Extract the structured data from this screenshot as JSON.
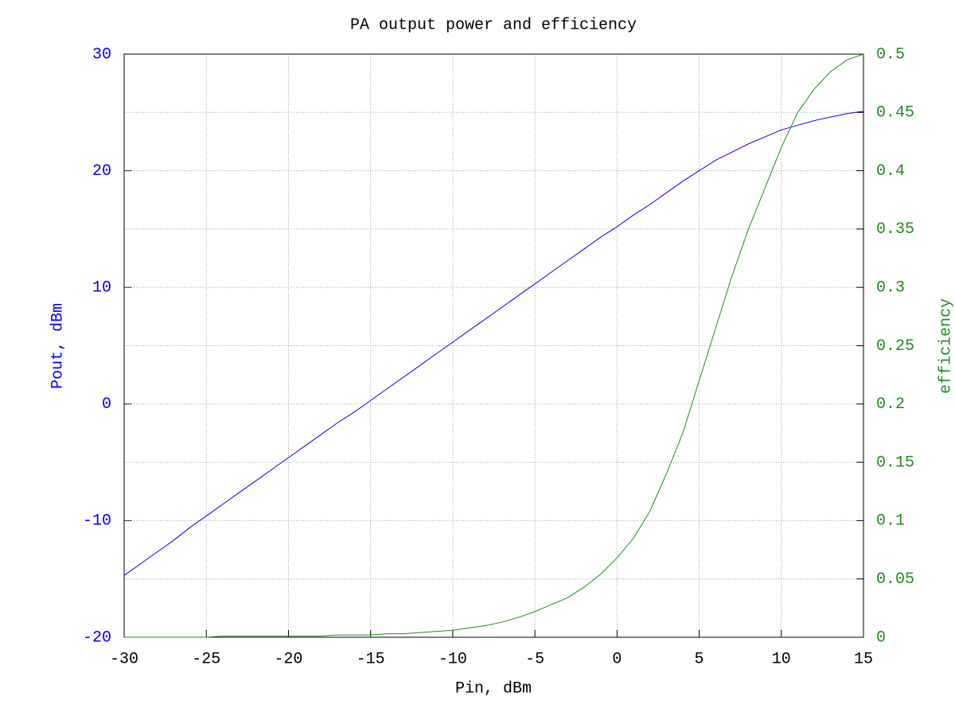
{
  "chart_data": {
    "type": "line",
    "title": "PA output power and efficiency",
    "x_label": "Pin, dBm",
    "y_label": "Pout, dBm",
    "y2_label": "efficiency",
    "x": [
      -30,
      -29,
      -28,
      -27,
      -26,
      -25,
      -24,
      -23,
      -22,
      -21,
      -20,
      -19,
      -18,
      -17,
      -16,
      -15,
      -14,
      -13,
      -12,
      -11,
      -10,
      -9,
      -8,
      -7,
      -6,
      -5,
      -4,
      -3,
      -2,
      -1,
      0,
      1,
      2,
      3,
      4,
      5,
      6,
      7,
      8,
      9,
      10,
      11,
      12,
      13,
      14,
      15
    ],
    "series": [
      {
        "name": "Pout",
        "color": "#0000ff",
        "axis": "y",
        "values": [
          -14.7,
          -13.7,
          -12.7,
          -11.7,
          -10.6,
          -9.6,
          -8.6,
          -7.6,
          -6.6,
          -5.6,
          -4.6,
          -3.6,
          -2.6,
          -1.6,
          -0.7,
          0.3,
          1.3,
          2.3,
          3.3,
          4.3,
          5.3,
          6.3,
          7.3,
          8.3,
          9.3,
          10.3,
          11.3,
          12.3,
          13.3,
          14.3,
          15.2,
          16.2,
          17.1,
          18.1,
          19.1,
          20.0,
          20.9,
          21.6,
          22.3,
          22.9,
          23.5,
          23.9,
          24.3,
          24.6,
          24.9,
          25.1
        ]
      },
      {
        "name": "efficiency",
        "color": "#228b22",
        "axis": "y2",
        "values": [
          0,
          0,
          0,
          0,
          0,
          0,
          0.001,
          0.001,
          0.001,
          0.001,
          0.001,
          0.001,
          0.001,
          0.002,
          0.002,
          0.002,
          0.003,
          0.003,
          0.004,
          0.005,
          0.006,
          0.008,
          0.01,
          0.013,
          0.017,
          0.022,
          0.028,
          0.034,
          0.043,
          0.054,
          0.068,
          0.085,
          0.108,
          0.14,
          0.175,
          0.22,
          0.265,
          0.31,
          0.35,
          0.385,
          0.42,
          0.45,
          0.47,
          0.485,
          0.495,
          0.5
        ]
      }
    ],
    "xlim": [
      -30,
      15
    ],
    "xticks": [
      -30,
      -25,
      -20,
      -15,
      -10,
      -5,
      0,
      5,
      10,
      15
    ],
    "ylim": [
      -20,
      30
    ],
    "yticks": [
      -20,
      -10,
      0,
      10,
      20,
      30
    ],
    "y2lim": [
      0,
      0.5
    ],
    "y2ticks": [
      0,
      0.05,
      0.1,
      0.15,
      0.2,
      0.25,
      0.3,
      0.35,
      0.4,
      0.45,
      0.5
    ],
    "grid": true
  }
}
